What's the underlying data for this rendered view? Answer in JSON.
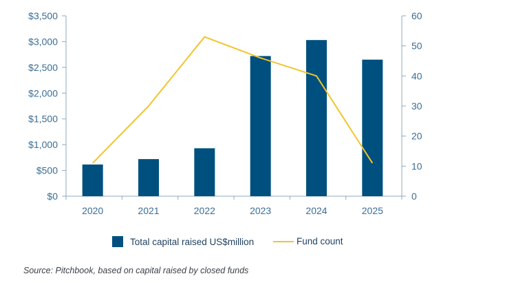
{
  "chart_data": {
    "type": "bar+line",
    "categories": [
      "2020",
      "2021",
      "2022",
      "2023",
      "2024",
      "2025"
    ],
    "series": [
      {
        "name": "Total capital raised US$million",
        "type": "bar",
        "axis": "left",
        "values": [
          615,
          720,
          930,
          2720,
          3030,
          2650
        ]
      },
      {
        "name": "Fund count",
        "type": "line",
        "axis": "right",
        "values": [
          11,
          30,
          53,
          46,
          40,
          11
        ]
      }
    ],
    "y_left": {
      "ylim": [
        0,
        3500
      ],
      "ticks": [
        0,
        500,
        1000,
        1500,
        2000,
        2500,
        3000,
        3500
      ],
      "tick_labels": [
        "$0",
        "$500",
        "$1,000",
        "$1,500",
        "$2,000",
        "$2,500",
        "$3,000",
        "$3,500"
      ]
    },
    "y_right": {
      "ylim": [
        0,
        60
      ],
      "ticks": [
        0,
        10,
        20,
        30,
        40,
        50,
        60
      ],
      "tick_labels": [
        "0",
        "10",
        "20",
        "30",
        "40",
        "50",
        "60"
      ]
    },
    "legend": {
      "placement": "bottom-center",
      "bar_label": "Total capital raised US$million",
      "line_label": "Fund count"
    },
    "grid": false,
    "colors": {
      "bar": "#00507f",
      "line": "#f2c42b",
      "axis": "#8fa9bf",
      "text": "#3a6d94"
    }
  },
  "source_note": "Source: Pitchbook, based on capital raised by closed funds"
}
